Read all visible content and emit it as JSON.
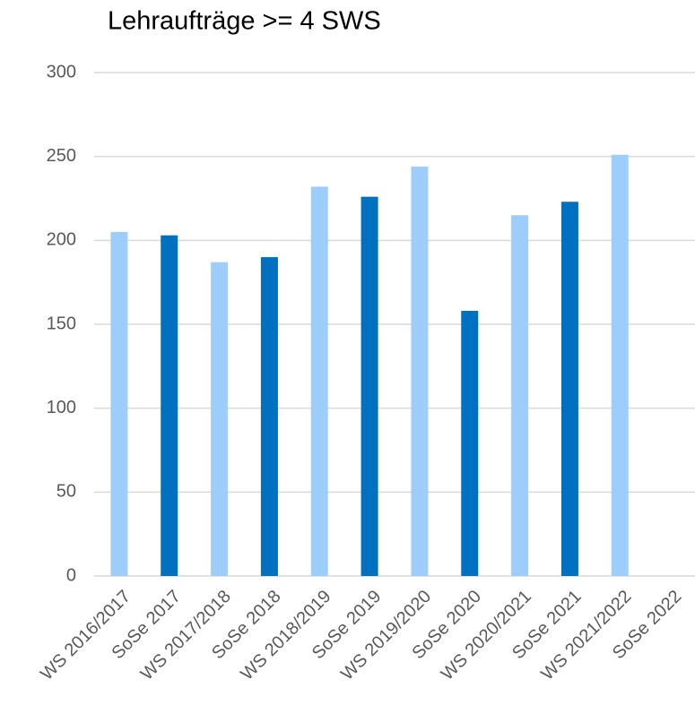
{
  "chart_data": {
    "type": "bar",
    "title": "Lehraufträge >= 4 SWS",
    "categories": [
      "WS 2016/2017",
      "SoSe 2017",
      "WS 2017/2018",
      "SoSe 2018",
      "WS 2018/2019",
      "SoSe 2019",
      "WS 2019/2020",
      "SoSe 2020",
      "WS 2020/2021",
      "SoSe 2021",
      "WS 2021/2022",
      "SoSe 2022"
    ],
    "values": [
      205,
      203,
      187,
      190,
      232,
      226,
      244,
      158,
      215,
      223,
      251,
      null
    ],
    "colors": [
      "#9dcdfb",
      "#0070c0",
      "#9dcdfb",
      "#0070c0",
      "#9dcdfb",
      "#0070c0",
      "#9dcdfb",
      "#0070c0",
      "#9dcdfb",
      "#0070c0",
      "#9dcdfb",
      null
    ],
    "ylim": [
      0,
      300
    ],
    "yticks": [
      0,
      50,
      100,
      150,
      200,
      250,
      300
    ],
    "grid": true
  }
}
